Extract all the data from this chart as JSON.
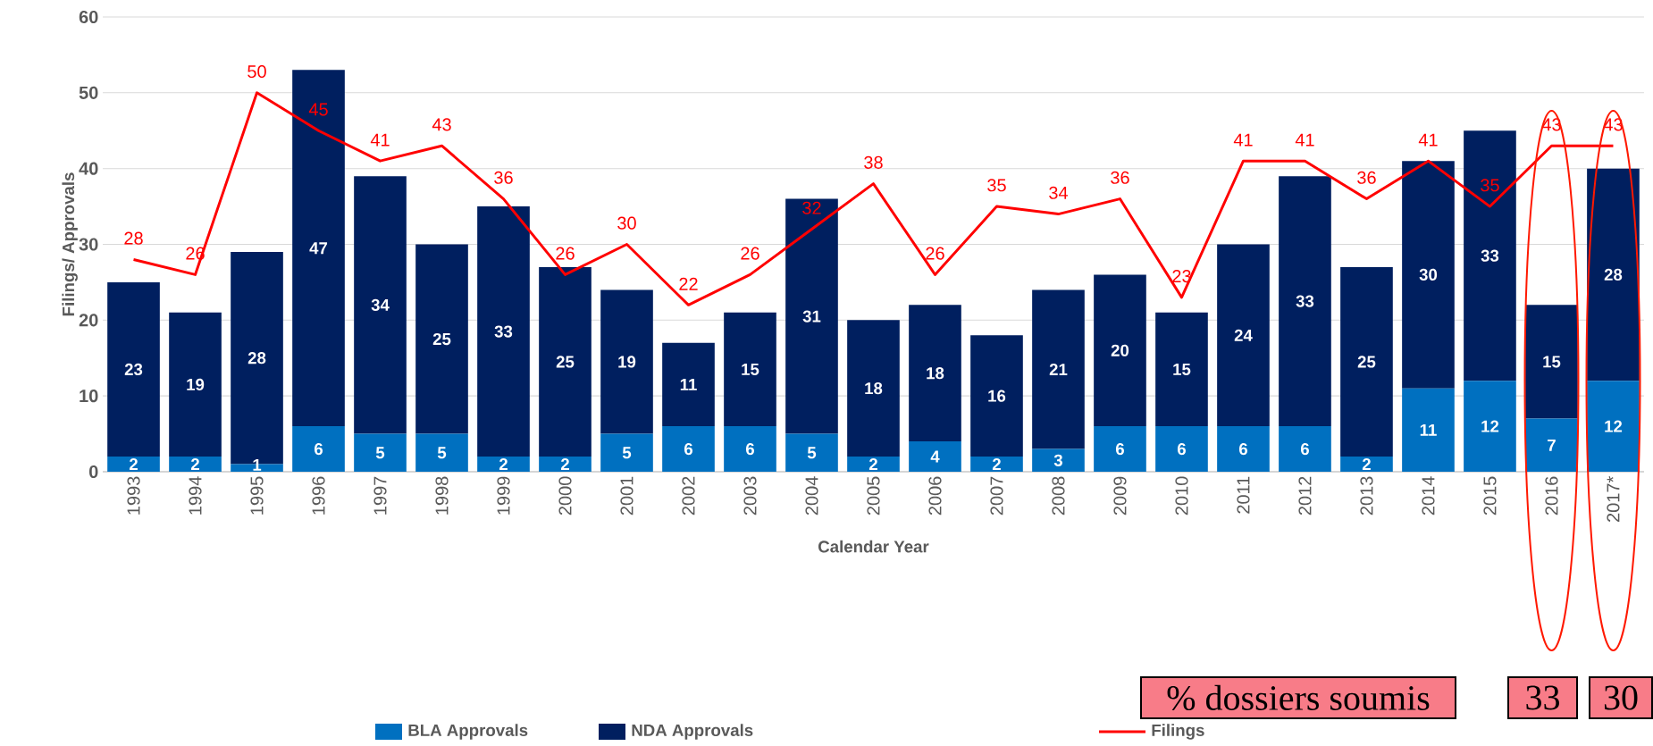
{
  "chart_data": {
    "type": "bar",
    "stacked": true,
    "xlabel": "Calendar Year",
    "ylabel": "Filings/ Approvals",
    "categories": [
      "1993",
      "1994",
      "1995",
      "1996",
      "1997",
      "1998",
      "1999",
      "2000",
      "2001",
      "2002",
      "2003",
      "2004",
      "2005",
      "2006",
      "2007",
      "2008",
      "2009",
      "2010",
      "2011",
      "2012",
      "2013",
      "2014",
      "2015",
      "2016",
      "2017*"
    ],
    "series": [
      {
        "name": "BLA Approvals",
        "type": "bar",
        "color": "#0070c0",
        "values": [
          2,
          2,
          1,
          6,
          5,
          5,
          2,
          2,
          5,
          6,
          6,
          5,
          2,
          4,
          2,
          3,
          6,
          6,
          6,
          6,
          2,
          11,
          12,
          7,
          12
        ]
      },
      {
        "name": "NDA Approvals",
        "type": "bar",
        "color": "#001f5f",
        "values": [
          23,
          19,
          28,
          47,
          34,
          25,
          33,
          25,
          19,
          11,
          15,
          31,
          18,
          18,
          16,
          21,
          20,
          15,
          24,
          33,
          25,
          30,
          33,
          15,
          28
        ]
      },
      {
        "name": "Filings",
        "type": "line",
        "color": "#ff0000",
        "values": [
          28,
          26,
          50,
          45,
          41,
          43,
          36,
          26,
          30,
          22,
          26,
          32,
          38,
          26,
          35,
          34,
          36,
          23,
          41,
          41,
          36,
          41,
          35,
          43,
          43
        ]
      }
    ],
    "ylim": [
      0,
      60
    ],
    "yticks": [
      0,
      10,
      20,
      30,
      40,
      50,
      60
    ],
    "grid": "y",
    "legend": "bottom",
    "data_labels": true,
    "annotations": [
      "% dossiers soumis",
      "33",
      "30"
    ]
  }
}
